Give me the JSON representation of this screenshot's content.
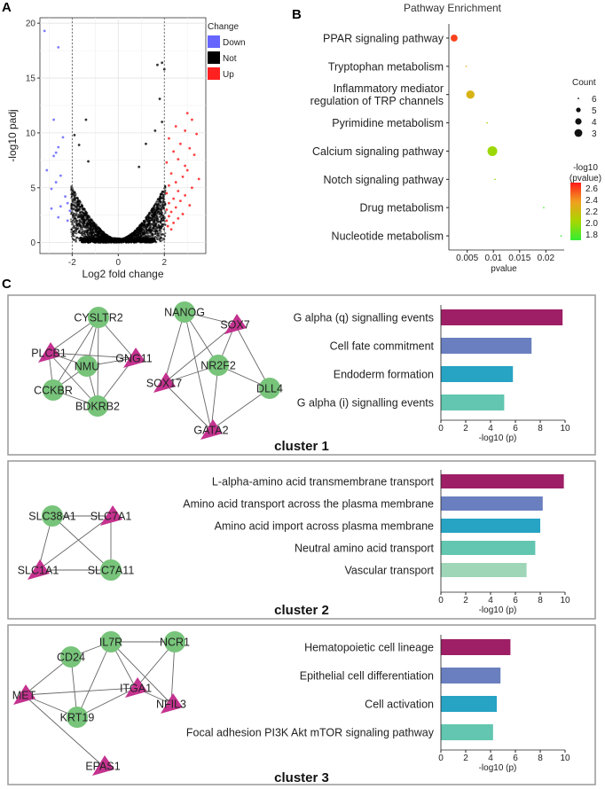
{
  "panel_labels": {
    "a": "A",
    "b": "B",
    "c": "C"
  },
  "chart_data": [
    {
      "id": "volcano",
      "type": "scatter",
      "xlabel": "Log2 fold change",
      "ylabel": "-log10 padj",
      "xlim": [
        -3.4,
        3.8
      ],
      "ylim": [
        -1,
        20.5
      ],
      "xticks": [
        -2,
        0,
        2
      ],
      "yticks": [
        0,
        5,
        10,
        15,
        20
      ],
      "thresholds_x": [
        -2,
        2
      ],
      "legend_title": "Change",
      "legend": [
        {
          "name": "Down",
          "color": "#6666ff"
        },
        {
          "name": "Not",
          "color": "#000000"
        },
        {
          "name": "Up",
          "color": "#ff2020"
        }
      ],
      "series": [
        {
          "name": "Down",
          "color": "#6666ff",
          "points": [
            [
              -3.2,
              19.3
            ],
            [
              -2.6,
              17.8
            ],
            [
              -2.8,
              11.2
            ],
            [
              -2.4,
              9.6
            ],
            [
              -2.6,
              8.7
            ],
            [
              -2.7,
              8.2
            ],
            [
              -2.8,
              7.9
            ],
            [
              -3.1,
              6.6
            ],
            [
              -2.5,
              6.1
            ],
            [
              -2.7,
              5.5
            ],
            [
              -2.9,
              4.9
            ],
            [
              -2.3,
              4.2
            ],
            [
              -2.2,
              3.6
            ],
            [
              -2.5,
              3.3
            ],
            [
              -2.9,
              3.1
            ],
            [
              -2.1,
              2.9
            ],
            [
              -2.6,
              2.3
            ],
            [
              -2.2,
              2.0
            ]
          ]
        },
        {
          "name": "Up",
          "color": "#ff2020",
          "points": [
            [
              3.0,
              11.8
            ],
            [
              3.2,
              11.2
            ],
            [
              2.5,
              10.6
            ],
            [
              2.9,
              10.2
            ],
            [
              3.4,
              9.9
            ],
            [
              2.2,
              9.5
            ],
            [
              2.7,
              9.0
            ],
            [
              3.1,
              8.6
            ],
            [
              2.4,
              8.3
            ],
            [
              3.3,
              8.0
            ],
            [
              2.6,
              7.6
            ],
            [
              2.1,
              7.3
            ],
            [
              2.9,
              7.0
            ],
            [
              3.0,
              6.6
            ],
            [
              2.3,
              6.3
            ],
            [
              2.8,
              6.0
            ],
            [
              3.5,
              5.8
            ],
            [
              2.5,
              5.5
            ],
            [
              2.2,
              5.2
            ],
            [
              3.2,
              5.0
            ],
            [
              2.6,
              4.7
            ],
            [
              2.1,
              4.5
            ],
            [
              2.9,
              4.3
            ],
            [
              2.4,
              4.0
            ],
            [
              2.7,
              3.8
            ],
            [
              2.2,
              3.6
            ],
            [
              3.1,
              3.4
            ],
            [
              2.5,
              3.2
            ],
            [
              2.1,
              3.0
            ],
            [
              2.3,
              2.8
            ],
            [
              2.8,
              2.6
            ],
            [
              2.2,
              2.4
            ],
            [
              2.6,
              2.2
            ],
            [
              2.1,
              2.0
            ],
            [
              2.4,
              1.8
            ],
            [
              2.15,
              1.5
            ],
            [
              2.3,
              1.2
            ]
          ]
        },
        {
          "name": "Not",
          "color": "#000000",
          "notable_points": [
            [
              1.7,
              16.2
            ],
            [
              1.9,
              16.4
            ],
            [
              2.0,
              15.8
            ],
            [
              1.8,
              13.1
            ],
            [
              -1.4,
              11.2
            ],
            [
              -1.9,
              9.8
            ],
            [
              -1.7,
              8.9
            ],
            [
              -1.3,
              7.4
            ],
            [
              1.6,
              10.2
            ],
            [
              1.9,
              11.0
            ],
            [
              1.2,
              9.0
            ],
            [
              0.9,
              6.9
            ]
          ]
        }
      ]
    },
    {
      "id": "enrichment",
      "type": "scatter",
      "title": "Pathway Enrichment",
      "xlabel": "pvalue",
      "xlim": [
        0.0015,
        0.0235
      ],
      "xticks": [
        0.005,
        0.01,
        0.015,
        0.02
      ],
      "xtick_labels": [
        "0.005",
        "0.01",
        "0.015",
        "0.02"
      ],
      "size_legend_title": "Count",
      "size_legend": [
        6,
        5,
        4,
        3
      ],
      "color_legend_title": "-log10\n(pvalue)",
      "color_legend_ticks": [
        "2.6",
        "2.4",
        "2.2",
        "2.0",
        "1.8"
      ],
      "color_range": [
        1.7,
        2.7
      ],
      "colors": [
        "#ff1a1a",
        "#f0a020",
        "#a8d600",
        "#33ee33"
      ],
      "points": [
        {
          "pathway": "PPAR signaling pathway",
          "pvalue": 0.0025,
          "count": 3,
          "neglog10p": 2.6
        },
        {
          "pathway": "Tryptophan metabolism",
          "pvalue": 0.0048,
          "count": 1,
          "neglog10p": 2.3
        },
        {
          "pathway": "Inflammatory mediator\nregulation of TRP channels",
          "pvalue": 0.0056,
          "count": 4,
          "neglog10p": 2.25
        },
        {
          "pathway": "Pyrimidine metabolism",
          "pvalue": 0.0088,
          "count": 1,
          "neglog10p": 2.05
        },
        {
          "pathway": "Calcium signaling pathway",
          "pvalue": 0.0098,
          "count": 5,
          "neglog10p": 2.0
        },
        {
          "pathway": "Notch signaling pathway",
          "pvalue": 0.0103,
          "count": 1,
          "neglog10p": 1.98
        },
        {
          "pathway": "Drug metabolism",
          "pvalue": 0.0196,
          "count": 1,
          "neglog10p": 1.75
        },
        {
          "pathway": "Nucleotide metabolism",
          "pvalue": 0.0229,
          "count": 1,
          "neglog10p": 1.66
        }
      ]
    },
    {
      "id": "cluster1_bar",
      "type": "bar",
      "orientation": "horizontal",
      "title": "cluster 1",
      "xlabel": "-log10 (p)",
      "xlim": [
        0,
        10
      ],
      "xticks": [
        0,
        2,
        4,
        6,
        8,
        10
      ],
      "categories": [
        "G alpha (q) signalling events",
        "Cell fate commitment",
        "Endoderm formation",
        "G alpha (i) signalling events"
      ],
      "values": [
        9.8,
        7.3,
        5.8,
        5.1
      ],
      "colors": [
        "#9e1f66",
        "#6a7fc0",
        "#27a3c4",
        "#62c6b0"
      ]
    },
    {
      "id": "cluster2_bar",
      "type": "bar",
      "orientation": "horizontal",
      "title": "cluster 2",
      "xlabel": "-log10 (p)",
      "xlim": [
        0,
        10
      ],
      "xticks": [
        0,
        2,
        4,
        6,
        8,
        10
      ],
      "categories": [
        "L-alpha-amino acid transmembrane transport",
        "Amino acid transport across the plasma membrane",
        "Amino acid import across plasma membrane",
        "Neutral amino acid transport",
        "Vascular transport"
      ],
      "values": [
        9.9,
        8.2,
        8.0,
        7.6,
        6.9
      ],
      "colors": [
        "#9e1f66",
        "#6a7fc0",
        "#27a3c4",
        "#62c6b0",
        "#9fd6b8"
      ]
    },
    {
      "id": "cluster3_bar",
      "type": "bar",
      "orientation": "horizontal",
      "title": "cluster 3",
      "xlabel": "-log10 (p)",
      "xlim": [
        0,
        10
      ],
      "xticks": [
        0,
        2,
        4,
        6,
        8,
        10
      ],
      "categories": [
        "Hematopoietic cell lineage",
        "Epithelial cell differentiation",
        "Cell activation",
        "Focal adhesion PI3K Akt mTOR signaling pathway"
      ],
      "values": [
        5.6,
        4.8,
        4.5,
        4.2
      ],
      "colors": [
        "#9e1f66",
        "#6a7fc0",
        "#27a3c4",
        "#62c6b0"
      ]
    }
  ],
  "networks": [
    {
      "id": "net1",
      "nodes": [
        {
          "id": "PLCB1",
          "label": "PLCB1",
          "shape": "triangle"
        },
        {
          "id": "CYSLTR2",
          "label": "CYSLTR2",
          "shape": "circle"
        },
        {
          "id": "NMU",
          "label": "NMU",
          "shape": "circle"
        },
        {
          "id": "GNG11",
          "label": "GNG11",
          "shape": "triangle"
        },
        {
          "id": "CCKBR",
          "label": "CCKBR",
          "shape": "circle"
        },
        {
          "id": "BDKRB2",
          "label": "BDKRB2",
          "shape": "circle"
        },
        {
          "id": "NANOG",
          "label": "NANOG",
          "shape": "circle"
        },
        {
          "id": "SOX7",
          "label": "SOX7",
          "shape": "triangle"
        },
        {
          "id": "NR2F2",
          "label": "NR2F2",
          "shape": "circle"
        },
        {
          "id": "SOX17",
          "label": "SOX17",
          "shape": "triangle"
        },
        {
          "id": "DLL4",
          "label": "DLL4",
          "shape": "circle"
        },
        {
          "id": "GATA2",
          "label": "GATA2",
          "shape": "triangle"
        }
      ],
      "edges": [
        [
          "PLCB1",
          "CYSLTR2"
        ],
        [
          "PLCB1",
          "NMU"
        ],
        [
          "PLCB1",
          "GNG11"
        ],
        [
          "PLCB1",
          "CCKBR"
        ],
        [
          "PLCB1",
          "BDKRB2"
        ],
        [
          "CYSLTR2",
          "NMU"
        ],
        [
          "CYSLTR2",
          "GNG11"
        ],
        [
          "CYSLTR2",
          "CCKBR"
        ],
        [
          "CYSLTR2",
          "BDKRB2"
        ],
        [
          "NMU",
          "GNG11"
        ],
        [
          "NMU",
          "CCKBR"
        ],
        [
          "NMU",
          "BDKRB2"
        ],
        [
          "GNG11",
          "BDKRB2"
        ],
        [
          "CCKBR",
          "BDKRB2"
        ],
        [
          "NANOG",
          "SOX7"
        ],
        [
          "NANOG",
          "NR2F2"
        ],
        [
          "NANOG",
          "SOX17"
        ],
        [
          "NANOG",
          "GATA2"
        ],
        [
          "SOX7",
          "NR2F2"
        ],
        [
          "SOX7",
          "SOX17"
        ],
        [
          "SOX7",
          "DLL4"
        ],
        [
          "NR2F2",
          "SOX17"
        ],
        [
          "NR2F2",
          "DLL4"
        ],
        [
          "NR2F2",
          "GATA2"
        ],
        [
          "SOX17",
          "GATA2"
        ],
        [
          "DLL4",
          "GATA2"
        ]
      ]
    },
    {
      "id": "net2",
      "nodes": [
        {
          "id": "SLC38A1",
          "label": "SLC38A1",
          "shape": "circle"
        },
        {
          "id": "SLC7A1",
          "label": "SLC7A1",
          "shape": "triangle"
        },
        {
          "id": "SLC1A1",
          "label": "SLC1A1",
          "shape": "triangle"
        },
        {
          "id": "SLC7A11",
          "label": "SLC7A11",
          "shape": "circle"
        }
      ],
      "edges": [
        [
          "SLC38A1",
          "SLC7A1"
        ],
        [
          "SLC38A1",
          "SLC1A1"
        ],
        [
          "SLC38A1",
          "SLC7A11"
        ],
        [
          "SLC7A1",
          "SLC1A1"
        ],
        [
          "SLC7A1",
          "SLC7A11"
        ],
        [
          "SLC1A1",
          "SLC7A11"
        ]
      ]
    },
    {
      "id": "net3",
      "nodes": [
        {
          "id": "CD24",
          "label": "CD24",
          "shape": "circle"
        },
        {
          "id": "IL7R",
          "label": "IL7R",
          "shape": "circle"
        },
        {
          "id": "NCR1",
          "label": "NCR1",
          "shape": "circle"
        },
        {
          "id": "MET",
          "label": "MET",
          "shape": "triangle"
        },
        {
          "id": "ITGA1",
          "label": "ITGA1",
          "shape": "triangle"
        },
        {
          "id": "NFIL3",
          "label": "NFIL3",
          "shape": "triangle"
        },
        {
          "id": "KRT19",
          "label": "KRT19",
          "shape": "circle"
        },
        {
          "id": "EPAS1",
          "label": "EPAS1",
          "shape": "triangle"
        }
      ],
      "edges": [
        [
          "CD24",
          "IL7R"
        ],
        [
          "CD24",
          "MET"
        ],
        [
          "CD24",
          "KRT19"
        ],
        [
          "IL7R",
          "NCR1"
        ],
        [
          "IL7R",
          "ITGA1"
        ],
        [
          "IL7R",
          "KRT19"
        ],
        [
          "IL7R",
          "NFIL3"
        ],
        [
          "NCR1",
          "ITGA1"
        ],
        [
          "NCR1",
          "NFIL3"
        ],
        [
          "MET",
          "KRT19"
        ],
        [
          "MET",
          "ITGA1"
        ],
        [
          "MET",
          "EPAS1"
        ],
        [
          "ITGA1",
          "KRT19"
        ],
        [
          "ITGA1",
          "NFIL3"
        ]
      ]
    }
  ],
  "styles": {
    "node_green": "#77c47a",
    "node_magenta": "#c4328f",
    "edge": "#666666",
    "frame": "#999999"
  }
}
